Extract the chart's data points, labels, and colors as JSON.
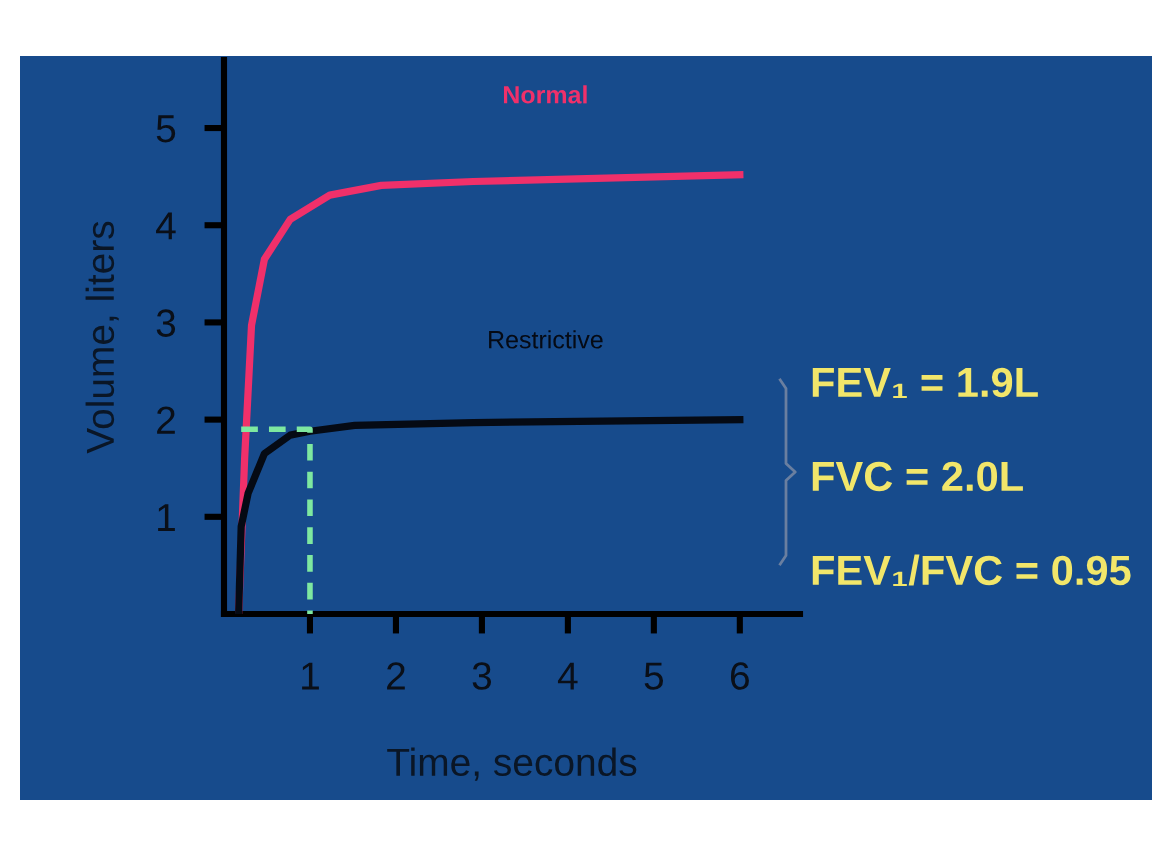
{
  "chart_data": {
    "type": "line",
    "xlabel": "Time, seconds",
    "ylabel": "Volume, liters",
    "xlim": [
      0,
      6.7
    ],
    "ylim": [
      0,
      5.7
    ],
    "xticks": [
      1,
      2,
      3,
      4,
      5,
      6
    ],
    "yticks": [
      1,
      2,
      3,
      4,
      5
    ],
    "grid": false,
    "legend": false,
    "marker": "none",
    "series": [
      {
        "name": "Normal",
        "color": "#f0306a",
        "x": [
          0.17,
          0.24,
          0.32,
          0.47,
          0.77,
          1.23,
          1.83,
          2.9,
          6.0
        ],
        "values": [
          0,
          1.6,
          2.97,
          3.65,
          4.06,
          4.31,
          4.41,
          4.45,
          4.52
        ]
      },
      {
        "name": "Restrictive",
        "color": "#050a14",
        "x": [
          0.17,
          0.2,
          0.28,
          0.47,
          0.77,
          1.0,
          1.52,
          2.9,
          6.0
        ],
        "values": [
          0,
          0.9,
          1.24,
          1.65,
          1.84,
          1.88,
          1.94,
          1.97,
          2.0
        ]
      },
      {
        "color": "#7ee8a0",
        "line_style": "dashed",
        "x": [
          0.2,
          1,
          1
        ],
        "values": [
          1.9,
          1.9,
          0
        ]
      }
    ],
    "annotations": [
      "FEV₁ = 1.9L",
      "FVC = 2.0L",
      "FEV₁/FVC = 0.95"
    ]
  }
}
